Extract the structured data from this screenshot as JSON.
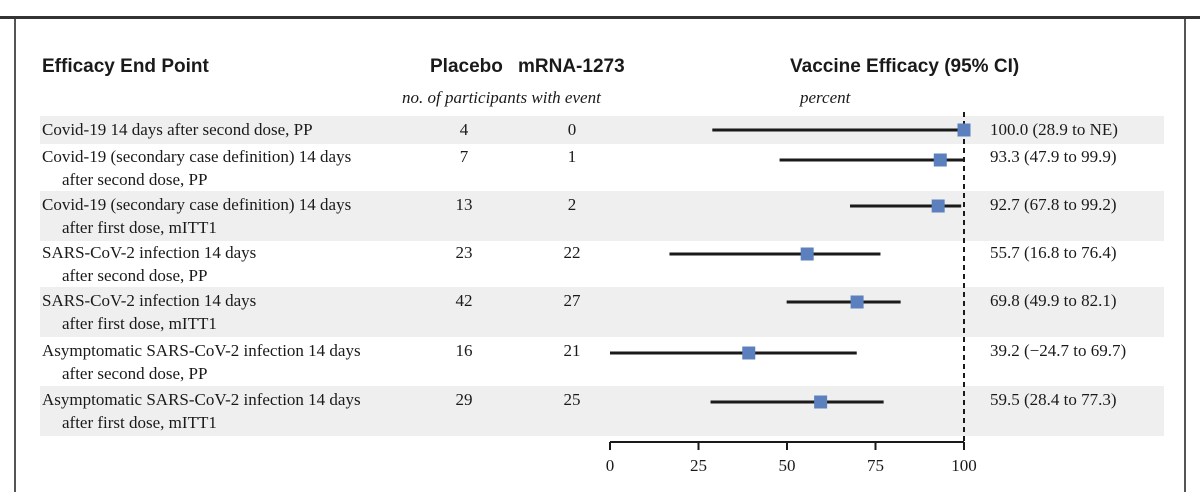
{
  "headers": {
    "endpoint": "Efficacy End Point",
    "placebo": "Placebo",
    "mrna": "mRNA-1273",
    "efficacy": "Vaccine Efficacy (95% CI)",
    "participants_sub": "no. of participants with event",
    "percent_sub": "percent"
  },
  "rows": [
    {
      "line1": "Covid-19 14 days after second dose, PP",
      "line2": "",
      "placebo": "4",
      "mrna": "0",
      "efficacy": "100.0 (28.9 to NE)"
    },
    {
      "line1": "Covid-19 (secondary case definition) 14 days",
      "line2": "after second dose, PP",
      "placebo": "7",
      "mrna": "1",
      "efficacy": "93.3 (47.9 to 99.9)"
    },
    {
      "line1": "Covid-19 (secondary case definition) 14 days",
      "line2": "after first dose, mITT1",
      "placebo": "13",
      "mrna": "2",
      "efficacy": "92.7 (67.8 to 99.2)"
    },
    {
      "line1": "SARS-CoV-2 infection 14 days",
      "line2": "after second dose, PP",
      "placebo": "23",
      "mrna": "22",
      "efficacy": "55.7 (16.8 to 76.4)"
    },
    {
      "line1": "SARS-CoV-2 infection 14 days",
      "line2": "after first dose, mITT1",
      "placebo": "42",
      "mrna": "27",
      "efficacy": "69.8 (49.9 to 82.1)"
    },
    {
      "line1": "Asymptomatic SARS-CoV-2 infection 14 days",
      "line2": "after second dose, PP",
      "placebo": "16",
      "mrna": "21",
      "efficacy": "39.2 (−24.7 to 69.7)"
    },
    {
      "line1": "Asymptomatic SARS-CoV-2 infection 14 days",
      "line2": "after first dose, mITT1",
      "placebo": "29",
      "mrna": "25",
      "efficacy": "59.5 (28.4 to 77.3)"
    }
  ],
  "chart_data": {
    "type": "forest",
    "xlim": [
      0,
      100
    ],
    "xticks": [
      0,
      25,
      50,
      75,
      100
    ],
    "reference_line": 100,
    "marker_color": "#5b80bd",
    "line_color": "#1a1a1a",
    "points": [
      {
        "estimate": 100.0,
        "lower": 28.9,
        "upper": 100
      },
      {
        "estimate": 93.3,
        "lower": 47.9,
        "upper": 99.9
      },
      {
        "estimate": 92.7,
        "lower": 67.8,
        "upper": 99.2
      },
      {
        "estimate": 55.7,
        "lower": 16.8,
        "upper": 76.4
      },
      {
        "estimate": 69.8,
        "lower": 49.9,
        "upper": 82.1
      },
      {
        "estimate": 39.2,
        "lower": -24.7,
        "upper": 69.7
      },
      {
        "estimate": 59.5,
        "lower": 28.4,
        "upper": 77.3
      }
    ]
  }
}
